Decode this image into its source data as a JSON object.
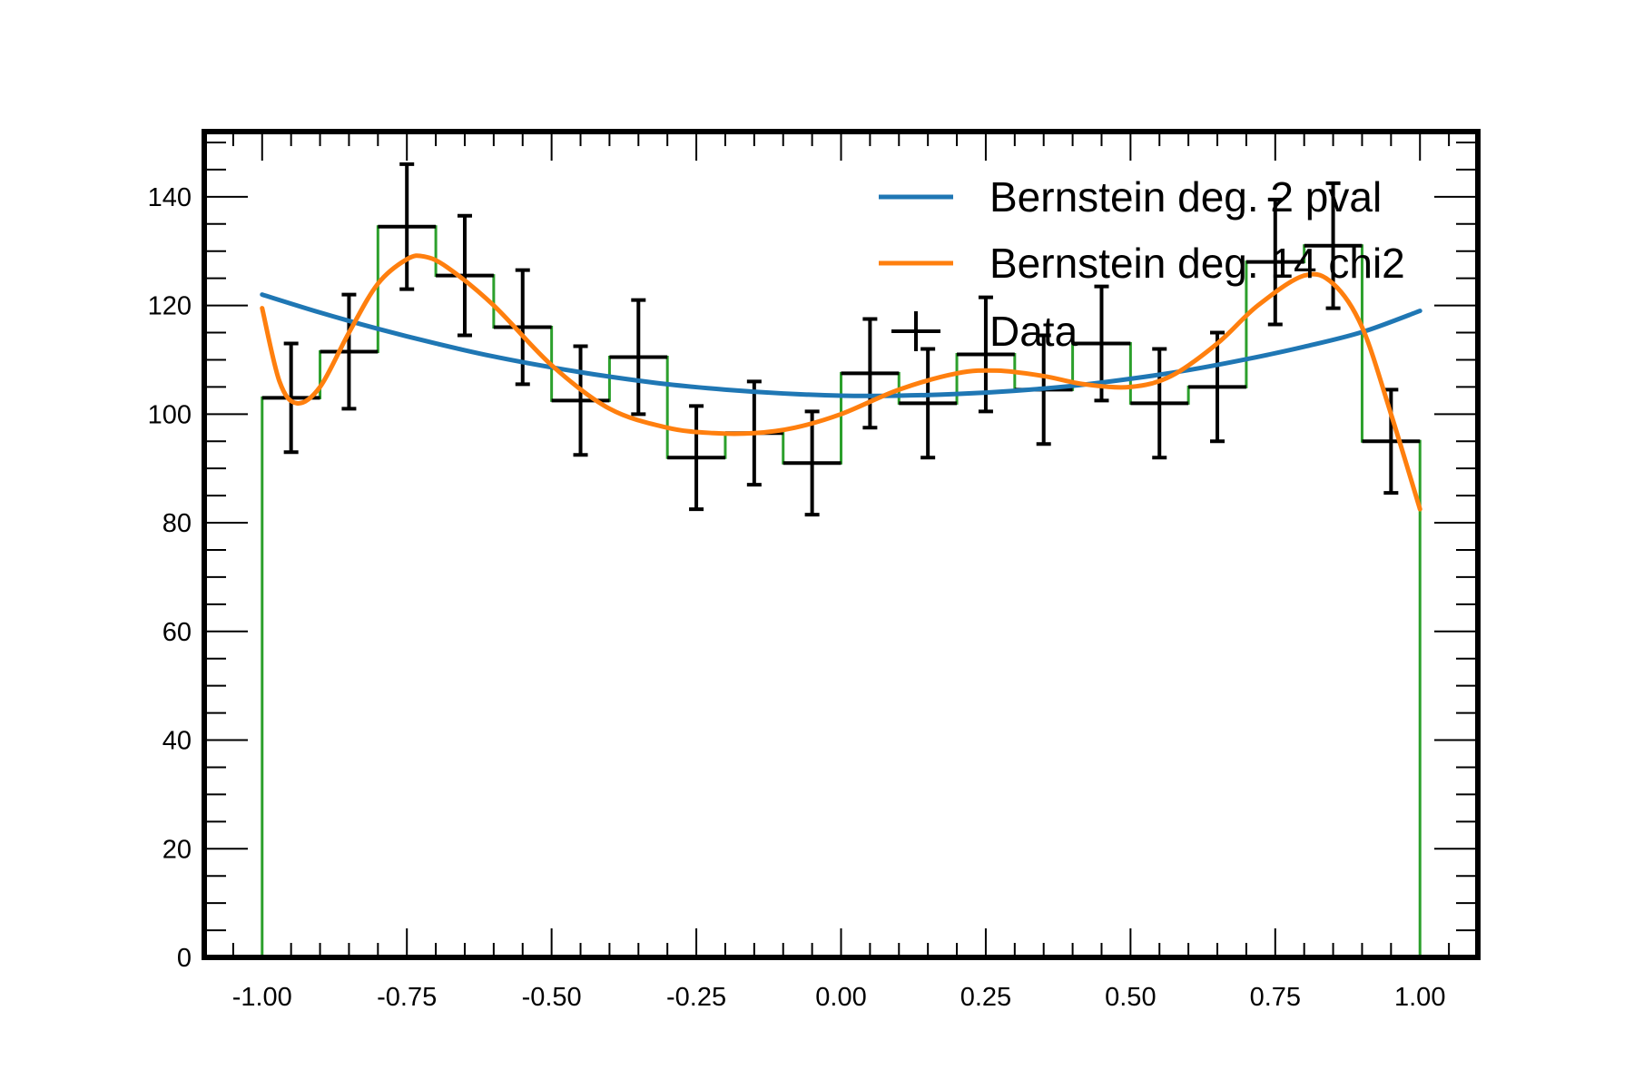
{
  "chart_data": {
    "type": "line",
    "title": "",
    "xlabel": "",
    "ylabel": "",
    "xlim": [
      -1.1,
      1.1
    ],
    "ylim": [
      0,
      152
    ],
    "grid": false,
    "legend_position": "top-right",
    "xticks": [
      -1.0,
      -0.75,
      -0.5,
      -0.25,
      0.0,
      0.25,
      0.5,
      0.75,
      1.0
    ],
    "xtick_labels": [
      "-1.00",
      "-0.75",
      "-0.50",
      "-0.25",
      "0.00",
      "0.25",
      "0.50",
      "0.75",
      "1.00"
    ],
    "yticks": [
      0,
      20,
      40,
      60,
      80,
      100,
      120,
      140
    ],
    "ytick_labels": [
      "0",
      "20",
      "40",
      "60",
      "80",
      "100",
      "120",
      "140"
    ],
    "histogram": {
      "color": "#2ca02c",
      "bin_edges": [
        -1.0,
        -0.9,
        -0.8,
        -0.7,
        -0.6,
        -0.5,
        -0.4,
        -0.3,
        -0.2,
        -0.1,
        0.0,
        0.1,
        0.2,
        0.3,
        0.4,
        0.5,
        0.6,
        0.7,
        0.8,
        0.9,
        1.0
      ],
      "values": [
        103,
        111.5,
        134.5,
        125.5,
        116,
        102.5,
        110.5,
        92,
        96.5,
        91,
        107.5,
        102,
        111,
        104.5,
        113,
        102,
        105,
        128,
        131,
        95
      ]
    },
    "data_points": {
      "name": "Data",
      "color": "#000000",
      "x": [
        -0.95,
        -0.85,
        -0.75,
        -0.65,
        -0.55,
        -0.45,
        -0.35,
        -0.25,
        -0.15,
        -0.05,
        0.05,
        0.15,
        0.25,
        0.35,
        0.45,
        0.55,
        0.65,
        0.75,
        0.85,
        0.95
      ],
      "y": [
        103,
        111.5,
        134.5,
        125.5,
        116,
        102.5,
        110.5,
        92,
        96.5,
        91,
        107.5,
        102,
        111,
        104.5,
        113,
        102,
        105,
        128,
        131,
        95
      ],
      "yerr": [
        10,
        10.5,
        11.5,
        11,
        10.5,
        10,
        10.5,
        9.5,
        9.5,
        9.5,
        10,
        10,
        10.5,
        10,
        10.5,
        10,
        10,
        11.5,
        11.5,
        9.5
      ],
      "xerr": 0.05
    },
    "series": [
      {
        "name": "Bernstein deg. 2 pval",
        "color": "#1f77b4",
        "x": [
          -1.0,
          -0.9,
          -0.8,
          -0.7,
          -0.6,
          -0.5,
          -0.4,
          -0.3,
          -0.2,
          -0.1,
          0.0,
          0.1,
          0.2,
          0.3,
          0.4,
          0.5,
          0.6,
          0.7,
          0.8,
          0.9,
          1.0
        ],
        "y": [
          122.0,
          118.7,
          115.7,
          113.0,
          110.6,
          108.6,
          106.9,
          105.5,
          104.5,
          103.8,
          103.4,
          103.4,
          103.7,
          104.3,
          105.2,
          106.5,
          108.1,
          110.1,
          112.4,
          115.1,
          119.0
        ]
      },
      {
        "name": "Bernstein deg. 14 chi2",
        "color": "#ff7f0e",
        "x": [
          -1.0,
          -0.97,
          -0.94,
          -0.9,
          -0.85,
          -0.8,
          -0.75,
          -0.72,
          -0.68,
          -0.6,
          -0.5,
          -0.4,
          -0.3,
          -0.22,
          -0.15,
          -0.08,
          0.0,
          0.1,
          0.2,
          0.27,
          0.35,
          0.42,
          0.5,
          0.57,
          0.65,
          0.72,
          0.8,
          0.85,
          0.9,
          0.95,
          1.0
        ],
        "y": [
          119.5,
          106,
          102,
          105,
          115,
          124,
          128.5,
          129,
          127,
          120,
          109,
          101,
          97.5,
          96.5,
          96.5,
          97.5,
          100,
          104.5,
          107.5,
          108,
          107,
          105.5,
          105,
          107,
          113,
          120,
          125.5,
          124,
          116,
          100,
          82.5
        ]
      }
    ]
  }
}
